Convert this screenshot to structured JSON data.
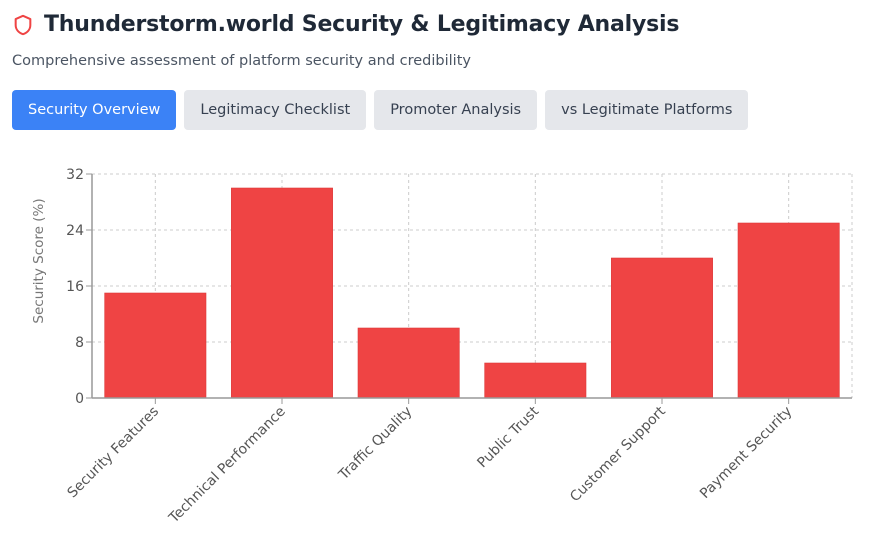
{
  "header": {
    "icon": "shield-icon",
    "title": "Thunderstorm.world Security & Legitimacy Analysis",
    "subtitle": "Comprehensive assessment of platform security and credibility"
  },
  "tabs": [
    {
      "label": "Security Overview",
      "active": true
    },
    {
      "label": "Legitimacy Checklist",
      "active": false
    },
    {
      "label": "Promoter Analysis",
      "active": false
    },
    {
      "label": "vs Legitimate Platforms",
      "active": false
    }
  ],
  "colors": {
    "accent": "#3b82f6",
    "bar": "#ef4444",
    "shield": "#ef4444"
  },
  "chart_data": {
    "type": "bar",
    "title": "",
    "xlabel": "",
    "ylabel": "Security Score (%)",
    "categories": [
      "Security Features",
      "Technical Performance",
      "Traffic Quality",
      "Public Trust",
      "Customer Support",
      "Payment Security"
    ],
    "values": [
      15,
      30,
      10,
      5,
      20,
      25
    ],
    "ylim": [
      0,
      32
    ],
    "yticks": [
      0,
      8,
      16,
      24,
      32
    ],
    "grid": true,
    "legend": "none"
  }
}
